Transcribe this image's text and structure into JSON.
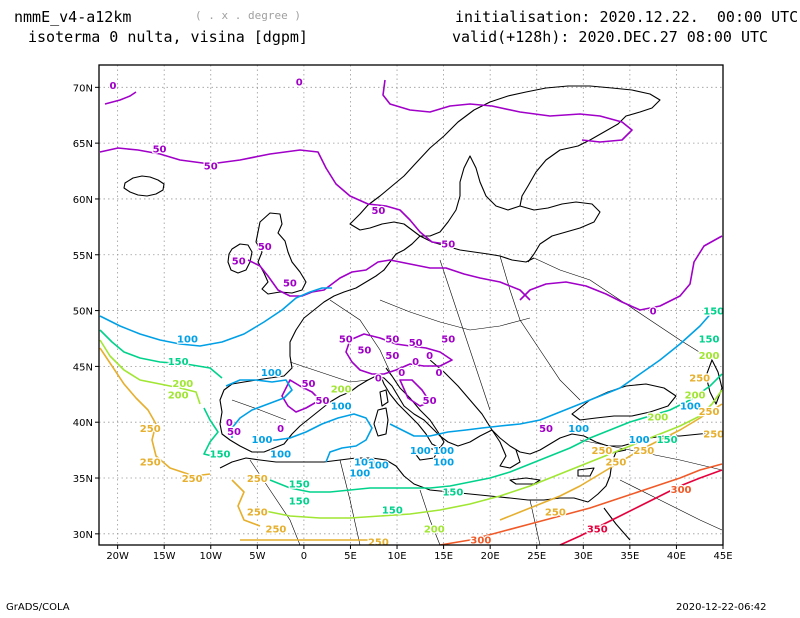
{
  "header": {
    "model": "nmmE_v4-a12km",
    "units": "( . x . degree )",
    "field": "isoterma 0 nulta, visina [dgpm]",
    "init": "initialisation: 2020.12.22.  00:00 UTC",
    "valid": "valid(+128h): 2020.DEC.27 08:00 UTC"
  },
  "footer": {
    "left": "GrADS/COLA",
    "right": "2020-12-22-06:42"
  },
  "map": {
    "lon_range": [
      -22,
      45
    ],
    "lat_range": [
      29,
      72
    ],
    "lat_ticks": [
      "30N",
      "35N",
      "40N",
      "45N",
      "50N",
      "55N",
      "60N",
      "65N",
      "70N"
    ],
    "lon_ticks": [
      "20W",
      "15W",
      "10W",
      "5W",
      "0",
      "5E",
      "10E",
      "15E",
      "20E",
      "25E",
      "30E",
      "35E",
      "40E",
      "45E"
    ],
    "contour_colors": {
      "0": "#a000c8",
      "50": "#a000c8",
      "100": "#00a0e6",
      "150": "#00d28c",
      "200": "#a0e632",
      "250": "#e6af2d",
      "300": "#f05a28",
      "350": "#e6003c"
    },
    "contour_labels": [
      {
        "text": "0",
        "lon": -20.5,
        "lat": 70.2,
        "level": "0"
      },
      {
        "text": "0",
        "lon": -0.5,
        "lat": 70.5,
        "level": "0"
      },
      {
        "text": "50",
        "lon": -15.5,
        "lat": 64.5,
        "level": "50"
      },
      {
        "text": "50",
        "lon": -10.0,
        "lat": 63.0,
        "level": "50"
      },
      {
        "text": "50",
        "lon": 8.0,
        "lat": 59.0,
        "level": "50"
      },
      {
        "text": "50",
        "lon": -7.0,
        "lat": 54.5,
        "level": "50"
      },
      {
        "text": "50",
        "lon": -4.2,
        "lat": 55.8,
        "level": "50"
      },
      {
        "text": "50",
        "lon": -1.5,
        "lat": 52.5,
        "level": "50"
      },
      {
        "text": "50",
        "lon": 15.5,
        "lat": 56.0,
        "level": "50"
      },
      {
        "text": "0",
        "lon": 37.5,
        "lat": 50.0,
        "level": "0"
      },
      {
        "text": "100",
        "lon": -12.5,
        "lat": 47.5,
        "level": "100"
      },
      {
        "text": "150",
        "lon": -13.5,
        "lat": 45.5,
        "level": "150"
      },
      {
        "text": "200",
        "lon": -13.0,
        "lat": 43.5,
        "level": "200"
      },
      {
        "text": "200",
        "lon": -13.5,
        "lat": 42.5,
        "level": "200"
      },
      {
        "text": "250",
        "lon": -16.5,
        "lat": 39.5,
        "level": "250"
      },
      {
        "text": "250",
        "lon": -16.5,
        "lat": 36.5,
        "level": "250"
      },
      {
        "text": "250",
        "lon": -12.0,
        "lat": 35.0,
        "level": "250"
      },
      {
        "text": "150",
        "lon": -9.0,
        "lat": 37.2,
        "level": "150"
      },
      {
        "text": "100",
        "lon": -3.5,
        "lat": 44.5,
        "level": "100"
      },
      {
        "text": "100",
        "lon": -4.5,
        "lat": 38.5,
        "level": "100"
      },
      {
        "text": "100",
        "lon": -2.5,
        "lat": 37.2,
        "level": "100"
      },
      {
        "text": "0",
        "lon": -8.0,
        "lat": 40.0,
        "level": "0"
      },
      {
        "text": "50",
        "lon": -7.5,
        "lat": 39.2,
        "level": "50"
      },
      {
        "text": "0",
        "lon": -2.5,
        "lat": 39.5,
        "level": "0"
      },
      {
        "text": "50",
        "lon": 0.5,
        "lat": 43.5,
        "level": "50"
      },
      {
        "text": "50",
        "lon": 2.0,
        "lat": 42.0,
        "level": "50"
      },
      {
        "text": "200",
        "lon": 4.0,
        "lat": 43.0,
        "level": "200"
      },
      {
        "text": "100",
        "lon": 4.0,
        "lat": 41.5,
        "level": "100"
      },
      {
        "text": "50",
        "lon": 4.5,
        "lat": 47.5,
        "level": "50"
      },
      {
        "text": "50",
        "lon": 6.5,
        "lat": 46.5,
        "level": "50"
      },
      {
        "text": "50",
        "lon": 9.5,
        "lat": 47.5,
        "level": "50"
      },
      {
        "text": "50",
        "lon": 12.0,
        "lat": 47.2,
        "level": "50"
      },
      {
        "text": "50",
        "lon": 15.5,
        "lat": 47.5,
        "level": "50"
      },
      {
        "text": "50",
        "lon": 9.5,
        "lat": 46.0,
        "level": "50"
      },
      {
        "text": "50",
        "lon": 13.5,
        "lat": 42.0,
        "level": "50"
      },
      {
        "text": "0",
        "lon": 10.5,
        "lat": 44.5,
        "level": "0"
      },
      {
        "text": "0",
        "lon": 12.0,
        "lat": 45.5,
        "level": "0"
      },
      {
        "text": "0",
        "lon": 13.5,
        "lat": 46.0,
        "level": "0"
      },
      {
        "text": "0",
        "lon": 14.5,
        "lat": 44.5,
        "level": "0"
      },
      {
        "text": "0",
        "lon": 8.0,
        "lat": 44.0,
        "level": "0"
      },
      {
        "text": "100",
        "lon": 6.5,
        "lat": 36.5,
        "level": "100"
      },
      {
        "text": "100",
        "lon": 8.0,
        "lat": 36.2,
        "level": "100"
      },
      {
        "text": "100",
        "lon": 6.0,
        "lat": 35.5,
        "level": "100"
      },
      {
        "text": "100",
        "lon": 12.5,
        "lat": 37.5,
        "level": "100"
      },
      {
        "text": "100",
        "lon": 15.0,
        "lat": 37.5,
        "level": "100"
      },
      {
        "text": "100",
        "lon": 15.0,
        "lat": 36.5,
        "level": "100"
      },
      {
        "text": "150",
        "lon": -0.5,
        "lat": 34.5,
        "level": "150"
      },
      {
        "text": "150",
        "lon": -0.5,
        "lat": 33.0,
        "level": "150"
      },
      {
        "text": "150",
        "lon": 16.0,
        "lat": 33.8,
        "level": "150"
      },
      {
        "text": "150",
        "lon": 9.5,
        "lat": 32.2,
        "level": "150"
      },
      {
        "text": "250",
        "lon": -5.0,
        "lat": 35.0,
        "level": "250"
      },
      {
        "text": "250",
        "lon": -5.0,
        "lat": 32.0,
        "level": "250"
      },
      {
        "text": "250",
        "lon": -3.0,
        "lat": 30.5,
        "level": "250"
      },
      {
        "text": "200",
        "lon": 14.0,
        "lat": 30.5,
        "level": "200"
      },
      {
        "text": "250",
        "lon": 8.0,
        "lat": 29.3,
        "level": "250"
      },
      {
        "text": "300",
        "lon": 19.0,
        "lat": 29.5,
        "level": "300"
      },
      {
        "text": "250",
        "lon": 27.0,
        "lat": 32.0,
        "level": "250"
      },
      {
        "text": "350",
        "lon": 31.5,
        "lat": 30.5,
        "level": "350"
      },
      {
        "text": "300",
        "lon": 40.5,
        "lat": 34.0,
        "level": "300"
      },
      {
        "text": "100",
        "lon": 29.5,
        "lat": 39.5,
        "level": "100"
      },
      {
        "text": "50",
        "lon": 26.0,
        "lat": 39.5,
        "level": "50"
      },
      {
        "text": "150",
        "lon": 44.0,
        "lat": 50.0,
        "level": "150"
      },
      {
        "text": "200",
        "lon": 43.5,
        "lat": 46.0,
        "level": "200"
      },
      {
        "text": "250",
        "lon": 42.5,
        "lat": 44.0,
        "level": "250"
      },
      {
        "text": "200",
        "lon": 42.0,
        "lat": 42.5,
        "level": "200"
      },
      {
        "text": "150",
        "lon": 43.5,
        "lat": 47.5,
        "level": "150"
      },
      {
        "text": "100",
        "lon": 41.5,
        "lat": 41.5,
        "level": "100"
      },
      {
        "text": "250",
        "lon": 36.5,
        "lat": 37.5,
        "level": "250"
      },
      {
        "text": "200",
        "lon": 38.0,
        "lat": 40.5,
        "level": "200"
      },
      {
        "text": "150",
        "lon": 39.0,
        "lat": 38.5,
        "level": "150"
      },
      {
        "text": "100",
        "lon": 36.0,
        "lat": 38.5,
        "level": "100"
      },
      {
        "text": "250",
        "lon": 32.0,
        "lat": 37.5,
        "level": "250"
      },
      {
        "text": "250",
        "lon": 33.5,
        "lat": 36.5,
        "level": "250"
      },
      {
        "text": "250",
        "lon": 44.0,
        "lat": 39.0,
        "level": "250"
      },
      {
        "text": "250",
        "lon": 43.5,
        "lat": 41.0,
        "level": "250"
      }
    ]
  }
}
